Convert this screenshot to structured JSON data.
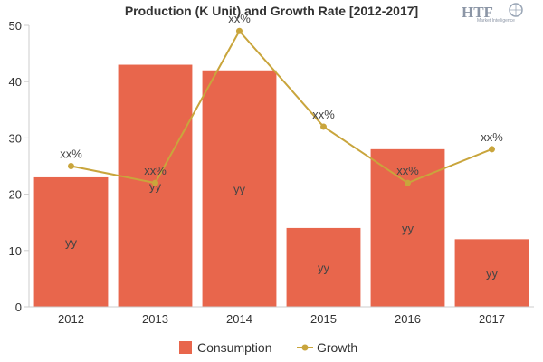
{
  "chart_data": {
    "type": "bar",
    "title": "Production (K Unit) and Growth Rate [2012-2017]",
    "categories": [
      "2012",
      "2013",
      "2014",
      "2015",
      "2016",
      "2017"
    ],
    "series": [
      {
        "name": "Consumption",
        "type": "bar",
        "color": "#e8664c",
        "values": [
          23,
          43,
          42,
          14,
          28,
          12
        ],
        "data_labels": [
          "yy",
          "yy",
          "yy",
          "yy",
          "yy",
          "yy"
        ]
      },
      {
        "name": "Growth",
        "type": "line",
        "color": "#c9a53c",
        "values": [
          25,
          22,
          49,
          32,
          22,
          28
        ],
        "data_labels": [
          "xx%",
          "xx%",
          "xx%",
          "xx%",
          "xx%",
          "xx%"
        ]
      }
    ],
    "yticks": [
      "0",
      "10",
      "20",
      "30",
      "40",
      "50"
    ],
    "ylim": [
      0,
      50
    ],
    "grid": false,
    "legend": "bottom-center"
  },
  "logo": {
    "text": "HTF",
    "subtext": "Market Intelligence"
  }
}
